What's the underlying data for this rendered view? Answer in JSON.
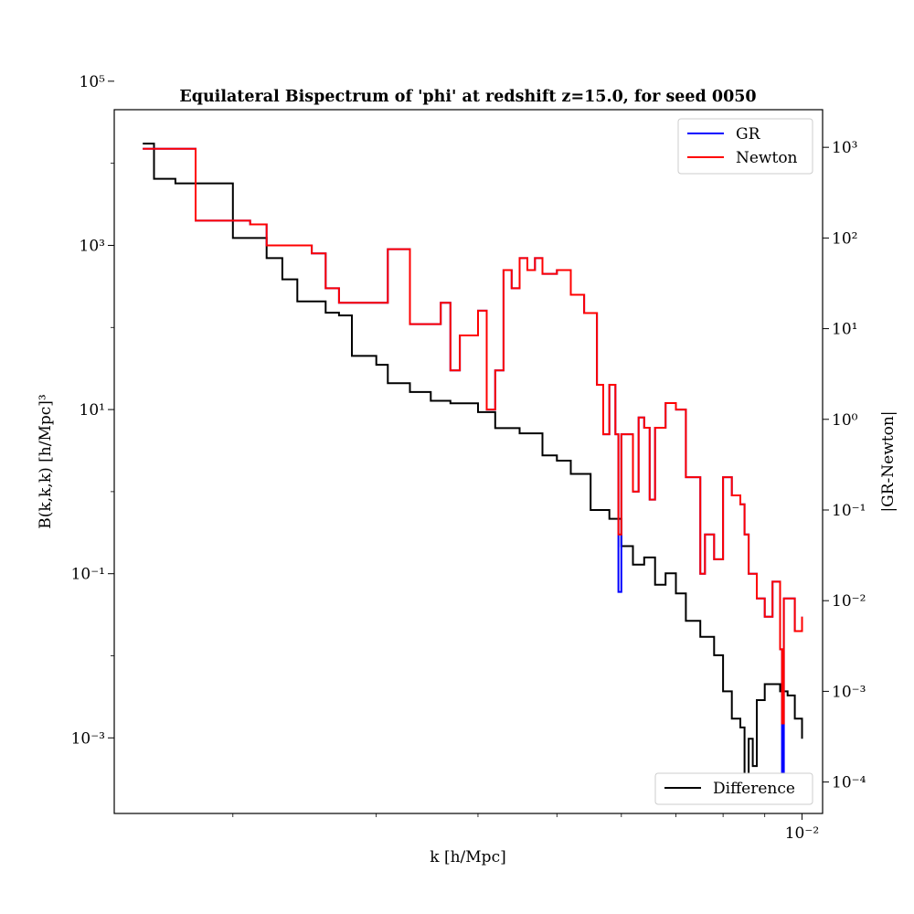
{
  "chart_data": {
    "type": "line",
    "title": "Equilateral Bispectrum of 'phi' at redshift z=15.0, for seed 0050",
    "xlabel": "k [h/Mpc]",
    "ylabel": "B(k,k,k) [h/Mpc]³",
    "y2label": "|GR-Newton|",
    "xscale": "log",
    "yscale": "log",
    "xlim": [
      0.00143,
      0.0106
    ],
    "ylim": [
      0.00012,
      45000
    ],
    "y2lim": [
      4.5e-05,
      2600
    ],
    "x_ticks": [
      "10⁻²"
    ],
    "y_ticks": [
      "10⁵",
      "10³",
      "10¹",
      "10⁻¹",
      "10⁻³"
    ],
    "y2_ticks": [
      "10³",
      "10²",
      "10¹",
      "10⁰",
      "10⁻¹",
      "10⁻²",
      "10⁻³",
      "10⁻⁴"
    ],
    "grid": false,
    "legend_top": {
      "placement": "upper right",
      "entries": [
        "GR",
        "Newton"
      ]
    },
    "legend_bottom": {
      "placement": "lower right",
      "entries": [
        "Difference"
      ]
    },
    "colors": {
      "GR": "#0000ff",
      "Newton": "#ff0000",
      "Difference": "#000000"
    },
    "series": [
      {
        "name": "GR",
        "axis": "left",
        "points": [
          [
            0.00155,
            15000
          ],
          [
            0.0018,
            2000
          ],
          [
            0.0021,
            1800
          ],
          [
            0.0022,
            1000
          ],
          [
            0.0025,
            800
          ],
          [
            0.0026,
            300
          ],
          [
            0.0027,
            200
          ],
          [
            0.0029,
            200
          ],
          [
            0.0031,
            900
          ],
          [
            0.0033,
            110
          ],
          [
            0.0035,
            110
          ],
          [
            0.0036,
            200
          ],
          [
            0.0037,
            30
          ],
          [
            0.0038,
            80
          ],
          [
            0.004,
            160
          ],
          [
            0.0041,
            10
          ],
          [
            0.0042,
            30
          ],
          [
            0.0043,
            500
          ],
          [
            0.0044,
            300
          ],
          [
            0.0045,
            700
          ],
          [
            0.0046,
            500
          ],
          [
            0.0047,
            700
          ],
          [
            0.0048,
            450
          ],
          [
            0.005,
            500
          ],
          [
            0.0052,
            250
          ],
          [
            0.0054,
            150
          ],
          [
            0.0056,
            20
          ],
          [
            0.0057,
            5
          ],
          [
            0.0058,
            20
          ],
          [
            0.0059,
            5
          ],
          [
            0.00595,
            0.06
          ],
          [
            0.006,
            5
          ],
          [
            0.0062,
            1
          ],
          [
            0.0063,
            8
          ],
          [
            0.0064,
            6
          ],
          [
            0.0065,
            0.8
          ],
          [
            0.0066,
            6
          ],
          [
            0.0068,
            12
          ],
          [
            0.007,
            10
          ],
          [
            0.0072,
            1.5
          ],
          [
            0.0075,
            0.1
          ],
          [
            0.0076,
            0.3
          ],
          [
            0.0078,
            0.15
          ],
          [
            0.008,
            1.5
          ],
          [
            0.0082,
            0.9
          ],
          [
            0.0084,
            0.7
          ],
          [
            0.0085,
            0.3
          ],
          [
            0.0086,
            0.1
          ],
          [
            0.0088,
            0.05
          ],
          [
            0.009,
            0.03
          ],
          [
            0.0092,
            0.08
          ],
          [
            0.0094,
            0.012
          ],
          [
            0.00945,
            0.0002
          ],
          [
            0.0095,
            0.05
          ],
          [
            0.0097,
            0.05
          ],
          [
            0.0098,
            0.02
          ],
          [
            0.01,
            0.03
          ]
        ]
      },
      {
        "name": "Newton",
        "axis": "left",
        "points": [
          [
            0.00155,
            15000
          ],
          [
            0.0018,
            2000
          ],
          [
            0.0021,
            1800
          ],
          [
            0.0022,
            1000
          ],
          [
            0.0025,
            800
          ],
          [
            0.0026,
            300
          ],
          [
            0.0027,
            200
          ],
          [
            0.0029,
            200
          ],
          [
            0.0031,
            900
          ],
          [
            0.0033,
            110
          ],
          [
            0.0035,
            110
          ],
          [
            0.0036,
            200
          ],
          [
            0.0037,
            30
          ],
          [
            0.0038,
            80
          ],
          [
            0.004,
            160
          ],
          [
            0.0041,
            10
          ],
          [
            0.0042,
            30
          ],
          [
            0.0043,
            500
          ],
          [
            0.0044,
            300
          ],
          [
            0.0045,
            700
          ],
          [
            0.0046,
            500
          ],
          [
            0.0047,
            700
          ],
          [
            0.0048,
            450
          ],
          [
            0.005,
            500
          ],
          [
            0.0052,
            250
          ],
          [
            0.0054,
            150
          ],
          [
            0.0056,
            20
          ],
          [
            0.0057,
            5
          ],
          [
            0.0058,
            20
          ],
          [
            0.0059,
            5
          ],
          [
            0.00595,
            0.3
          ],
          [
            0.006,
            5
          ],
          [
            0.0062,
            1
          ],
          [
            0.0063,
            8
          ],
          [
            0.0064,
            6
          ],
          [
            0.0065,
            0.8
          ],
          [
            0.0066,
            6
          ],
          [
            0.0068,
            12
          ],
          [
            0.007,
            10
          ],
          [
            0.0072,
            1.5
          ],
          [
            0.0075,
            0.1
          ],
          [
            0.0076,
            0.3
          ],
          [
            0.0078,
            0.15
          ],
          [
            0.008,
            1.5
          ],
          [
            0.0082,
            0.9
          ],
          [
            0.0084,
            0.7
          ],
          [
            0.0085,
            0.3
          ],
          [
            0.0086,
            0.1
          ],
          [
            0.0088,
            0.05
          ],
          [
            0.009,
            0.03
          ],
          [
            0.0092,
            0.08
          ],
          [
            0.0094,
            0.012
          ],
          [
            0.00945,
            0.0015
          ],
          [
            0.0095,
            0.05
          ],
          [
            0.0097,
            0.05
          ],
          [
            0.0098,
            0.02
          ],
          [
            0.01,
            0.03
          ]
        ]
      },
      {
        "name": "Difference",
        "axis": "right",
        "points": [
          [
            0.00155,
            1100
          ],
          [
            0.0016,
            450
          ],
          [
            0.0017,
            400
          ],
          [
            0.002,
            100
          ],
          [
            0.0022,
            60
          ],
          [
            0.0023,
            35
          ],
          [
            0.0024,
            20
          ],
          [
            0.0025,
            20
          ],
          [
            0.0026,
            15
          ],
          [
            0.0027,
            14
          ],
          [
            0.0028,
            5
          ],
          [
            0.003,
            4
          ],
          [
            0.0031,
            2.5
          ],
          [
            0.0033,
            2
          ],
          [
            0.0035,
            1.6
          ],
          [
            0.0037,
            1.5
          ],
          [
            0.004,
            1.2
          ],
          [
            0.0042,
            0.8
          ],
          [
            0.0045,
            0.7
          ],
          [
            0.0048,
            0.4
          ],
          [
            0.005,
            0.35
          ],
          [
            0.0052,
            0.25
          ],
          [
            0.0055,
            0.1
          ],
          [
            0.0058,
            0.08
          ],
          [
            0.006,
            0.04
          ],
          [
            0.0062,
            0.025
          ],
          [
            0.0064,
            0.03
          ],
          [
            0.0066,
            0.015
          ],
          [
            0.0068,
            0.02
          ],
          [
            0.007,
            0.012
          ],
          [
            0.0072,
            0.006
          ],
          [
            0.0075,
            0.004
          ],
          [
            0.0078,
            0.0025
          ],
          [
            0.008,
            0.001
          ],
          [
            0.0082,
            0.0005
          ],
          [
            0.0084,
            0.0004
          ],
          [
            0.0085,
            0.0001
          ],
          [
            0.0086,
            0.0003
          ],
          [
            0.0087,
            0.00015
          ],
          [
            0.0088,
            0.0008
          ],
          [
            0.009,
            0.0012
          ],
          [
            0.0092,
            0.0012
          ],
          [
            0.0094,
            0.001
          ],
          [
            0.0096,
            0.0009
          ],
          [
            0.0098,
            0.0005
          ],
          [
            0.01,
            0.0003
          ]
        ]
      }
    ]
  }
}
